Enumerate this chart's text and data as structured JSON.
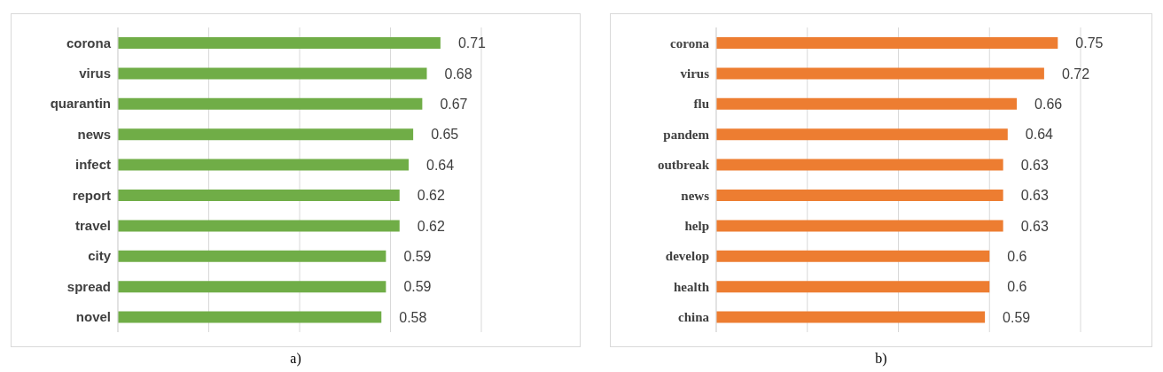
{
  "chart_data": [
    {
      "type": "bar",
      "orientation": "horizontal",
      "relative": false,
      "categories": [
        "corona",
        "virus",
        "quarantin",
        "news",
        "infect",
        "report",
        "travel",
        "city",
        "spread",
        "novel"
      ],
      "values": [
        0.71,
        0.68,
        0.67,
        0.65,
        0.64,
        0.62,
        0.62,
        0.59,
        0.59,
        0.58
      ],
      "color": "#70ad47",
      "xlim": [
        0,
        0.8
      ],
      "xticks": [
        {
          "value": 0,
          "label": null
        },
        {
          "value": 0.2,
          "label": null
        },
        {
          "value": 0.4,
          "label": null
        },
        {
          "value": 0.6,
          "label": null
        },
        {
          "value": 0.8,
          "label": null
        }
      ],
      "grid": "x",
      "data_labels": true,
      "tick_labels": "y",
      "annotations": [
        "a)"
      ]
    },
    {
      "type": "bar",
      "orientation": "horizontal",
      "relative": false,
      "categories": [
        "corona",
        "virus",
        "flu",
        "pandem",
        "outbreak",
        "news",
        "help",
        "develop",
        "health",
        "china"
      ],
      "values": [
        0.75,
        0.72,
        0.66,
        0.64,
        0.63,
        0.63,
        0.63,
        0.6,
        0.6,
        0.59
      ],
      "color": "#ed7d31",
      "xlim": [
        0,
        0.8
      ],
      "xticks": [
        {
          "value": 0,
          "label": null
        },
        {
          "value": 0.2,
          "label": null
        },
        {
          "value": 0.4,
          "label": null
        },
        {
          "value": 0.6,
          "label": null
        },
        {
          "value": 0.8,
          "label": null
        }
      ],
      "grid": "x",
      "data_labels": true,
      "tick_labels": "y",
      "annotations": [
        "b)"
      ]
    }
  ]
}
